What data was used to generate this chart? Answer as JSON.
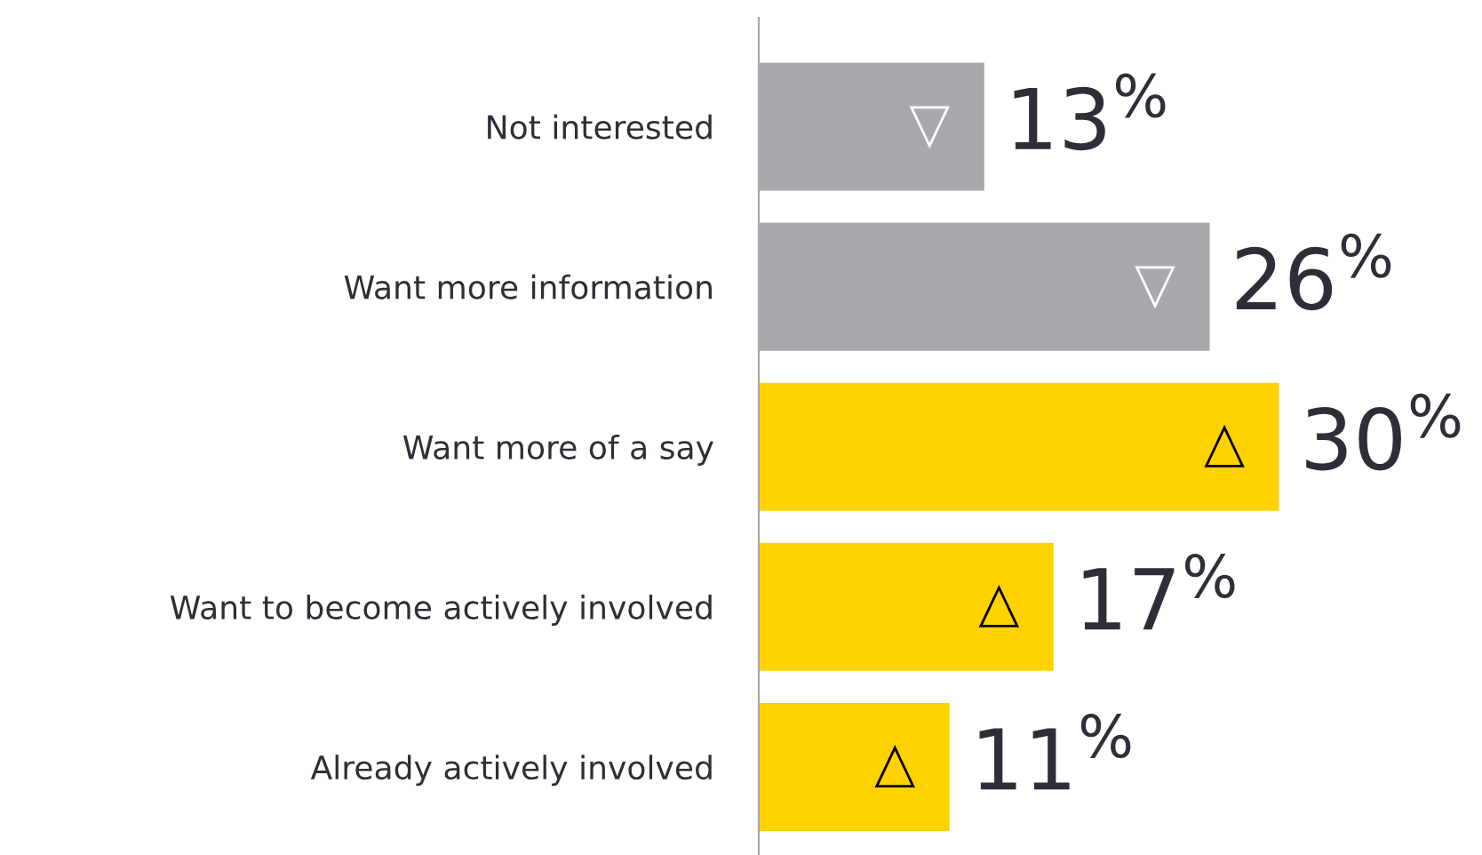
{
  "chart_data": {
    "type": "bar",
    "orientation": "horizontal",
    "categories": [
      "Not interested",
      "Want more information",
      "Want more of a say",
      "Want to become actively involved",
      "Already actively involved"
    ],
    "values": [
      13,
      26,
      30,
      17,
      11
    ],
    "colors": [
      "#a7a9ac",
      "#a7a9ac",
      "#ffd200",
      "#ffd200",
      "#ffd200"
    ],
    "value_labels": [
      "13$^{%}$",
      "26$^{%}$",
      "30$^{%}$",
      "17$^{%}$",
      "11$^{%}$"
    ],
    "grid": false,
    "legend": false
  }
}
